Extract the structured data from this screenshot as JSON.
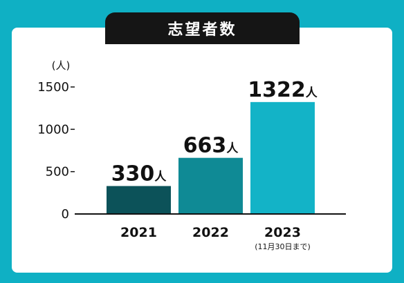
{
  "chart_data": {
    "type": "bar",
    "title": "志望者数",
    "ylabel": "(人)",
    "ylim": [
      0,
      1500
    ],
    "yticks": [
      0,
      500,
      1000,
      1500
    ],
    "ytick_labels": [
      "0",
      "500",
      "1000",
      "1500"
    ],
    "categories": [
      "2021",
      "2022",
      "2023"
    ],
    "category_notes": [
      "",
      "",
      "(11月30日まで)"
    ],
    "values": [
      330,
      663,
      1322
    ],
    "data_labels": [
      "330",
      "663",
      "1322"
    ],
    "value_unit": "人",
    "colors": [
      "#0c5259",
      "#0f8a95",
      "#13b3c7"
    ]
  }
}
